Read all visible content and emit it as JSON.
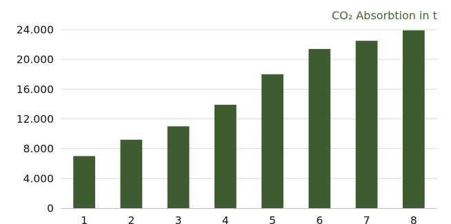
{
  "chart_data": {
    "type": "bar",
    "title": "CO₂ Absorbtion in t",
    "categories": [
      "1",
      "2",
      "3",
      "4",
      "5",
      "6",
      "7",
      "8"
    ],
    "values": [
      7000,
      9200,
      11000,
      13900,
      18000,
      21400,
      22500,
      23900
    ],
    "ylim": [
      0,
      24000
    ],
    "yticks": [
      0,
      4000,
      8000,
      12000,
      16000,
      20000,
      24000
    ],
    "ytick_labels": [
      "0",
      "4.000",
      "8.000",
      "12.000",
      "16.000",
      "20.000",
      "24.000"
    ],
    "xlabel": "",
    "ylabel": "",
    "grid": true,
    "legend": "none",
    "colors": {
      "bar": "#3d5c30",
      "title": "#3f6b2a",
      "grid": "#d9d9d9",
      "axis": "#bfbfbf"
    }
  }
}
